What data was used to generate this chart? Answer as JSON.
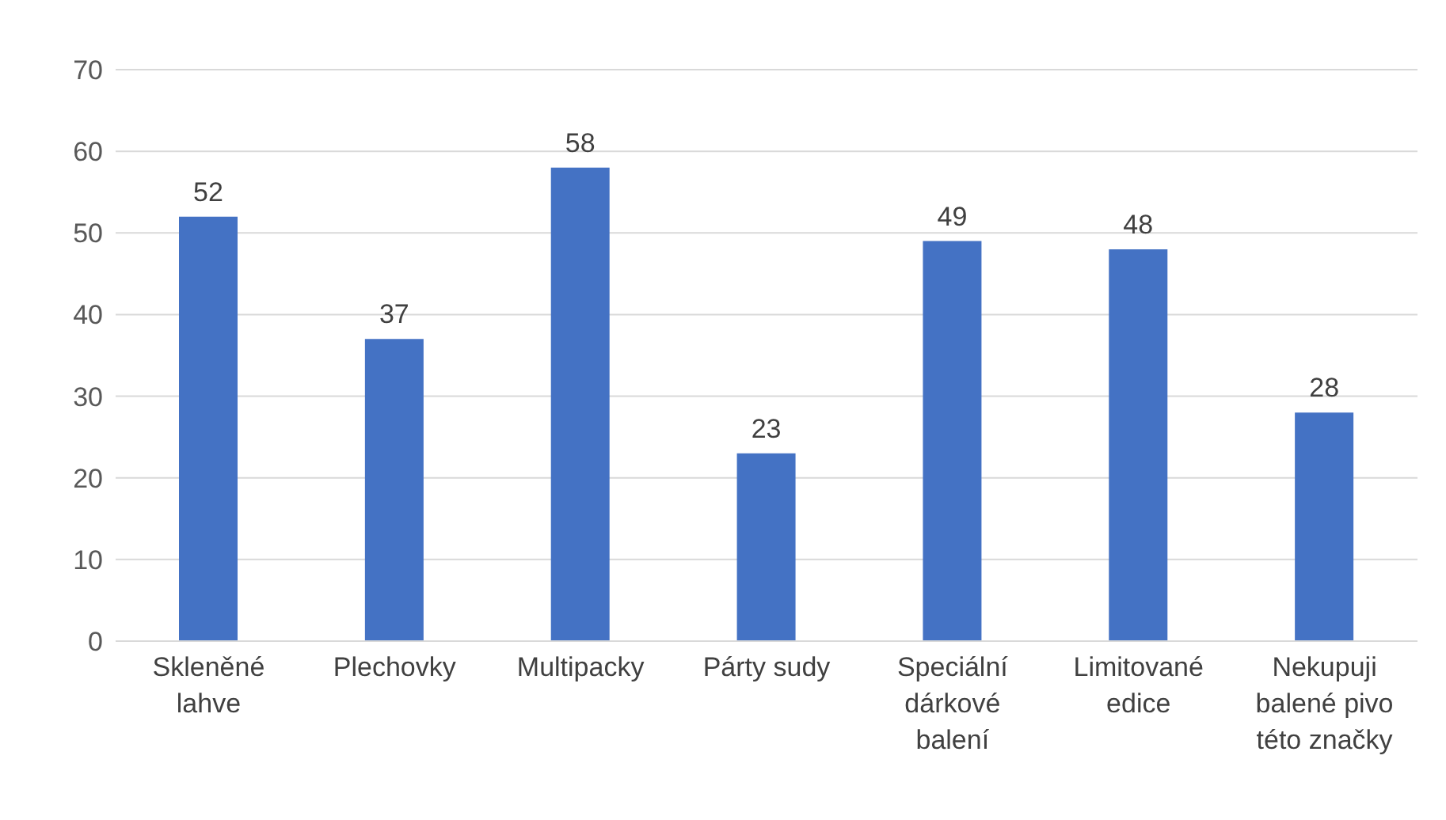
{
  "chart_data": {
    "type": "bar",
    "categories": [
      "Skleněné lahve",
      "Plechovky",
      "Multipacky",
      "Párty sudy",
      "Speciální dárkové balení",
      "Limitované edice",
      "Nekupuji balené pivo této značky"
    ],
    "values": [
      52,
      37,
      58,
      23,
      49,
      48,
      28
    ],
    "color": "#4472c4",
    "ylim": [
      0,
      70
    ],
    "yticks": [
      0,
      10,
      20,
      30,
      40,
      50,
      60,
      70
    ],
    "grid": "y",
    "data_labels": true
  }
}
